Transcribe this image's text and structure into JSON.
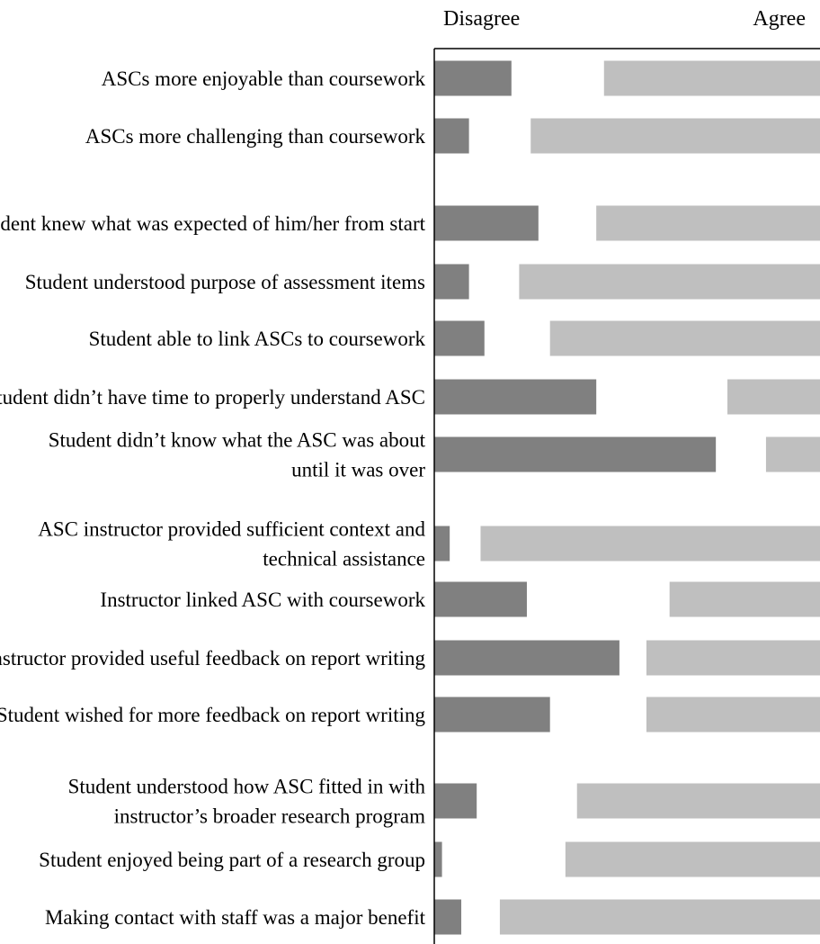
{
  "colors": {
    "disagree": "#808080",
    "agree": "#bfbfbf",
    "axis": "#000000",
    "text": "#000000"
  },
  "chart_data": {
    "type": "bar",
    "orientation": "horizontal",
    "stacked": false,
    "grid": false,
    "legend": "none",
    "title": "",
    "xlabel": "",
    "ylabel": "",
    "header_left": "Disagree",
    "header_right": "Agree",
    "categories": [
      [
        "ASCs more enjoyable than coursework"
      ],
      [
        "ASCs more challenging than coursework"
      ],
      [
        "Student knew what was expected of him/her from start"
      ],
      [
        "Student understood purpose of assessment items"
      ],
      [
        "Student able to link ASCs to coursework"
      ],
      [
        "Student didn’t have time to properly understand ASC"
      ],
      [
        "Student didn’t know what the ASC was about",
        "until it was over"
      ],
      [
        "ASC instructor provided sufficient context and",
        "technical assistance"
      ],
      [
        "Instructor linked ASC with coursework"
      ],
      [
        "Instructor provided useful feedback on report writing"
      ],
      [
        "Student wished for more feedback on report writing"
      ],
      [
        "Student understood how ASC fitted in with",
        "instructor’s broader research program"
      ],
      [
        "Student enjoyed being part of a research group"
      ],
      [
        "Making contact with staff was a major benefit"
      ]
    ],
    "groups": [
      2,
      5,
      4,
      3
    ],
    "series": [
      {
        "key": "disagree",
        "values": [
          20,
          9,
          27,
          9,
          13,
          42,
          73,
          4,
          24,
          48,
          30,
          11,
          2,
          7
        ]
      },
      {
        "key": "agree",
        "values": [
          56,
          75,
          58,
          78,
          70,
          24,
          14,
          88,
          39,
          45,
          45,
          63,
          66,
          83
        ]
      }
    ],
    "xlim": [
      0,
      100
    ]
  }
}
